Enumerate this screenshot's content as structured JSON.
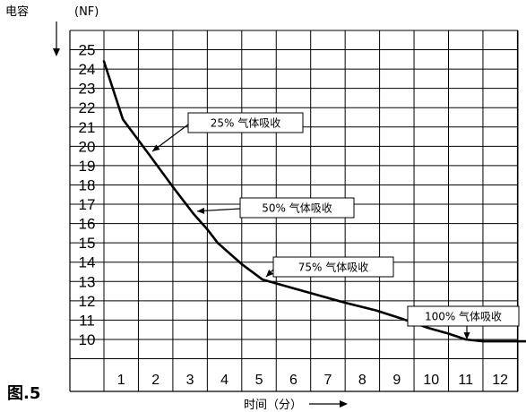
{
  "figure_label": "图.5",
  "chart_data": {
    "type": "line",
    "title": "",
    "ylabel": "电容",
    "yunit": "(NF)",
    "xlabel": "时间（分）",
    "x_ticks": [
      "1",
      "2",
      "3",
      "4",
      "5",
      "6",
      "7",
      "8",
      "9",
      "10",
      "11",
      "12"
    ],
    "y_ticks": [
      "10",
      "11",
      "12",
      "13",
      "14",
      "15",
      "16",
      "17",
      "18",
      "19",
      "20",
      "21",
      "22",
      "23",
      "24",
      "25"
    ],
    "xlim": [
      0,
      12.5
    ],
    "ylim": [
      9,
      26
    ],
    "grid": true,
    "series": [
      {
        "x": [
          0,
          0.55,
          1.3,
          2.0,
          2.6,
          3.0,
          3.3,
          4.0,
          4.6,
          5.2,
          6.0,
          7.0,
          7.9,
          8.6,
          9.4,
          10.0,
          10.5,
          11.0,
          11.6,
          12.5
        ],
        "y": [
          24.4,
          21.4,
          19.6,
          17.9,
          16.5,
          15.7,
          15.0,
          13.9,
          13.1,
          12.8,
          12.4,
          11.9,
          11.5,
          11.1,
          10.6,
          10.3,
          10.0,
          9.9,
          9.9,
          9.9
        ]
      }
    ],
    "annotations": [
      {
        "text": "25% 气体吸收",
        "x": 1.3,
        "y": 19.6
      },
      {
        "text": "50% 气体吸收",
        "x": 2.6,
        "y": 16.5
      },
      {
        "text": "75% 气体吸收",
        "x": 4.6,
        "y": 13.1
      },
      {
        "text": "100% 气体吸收",
        "x": 11.0,
        "y": 9.9
      }
    ]
  }
}
